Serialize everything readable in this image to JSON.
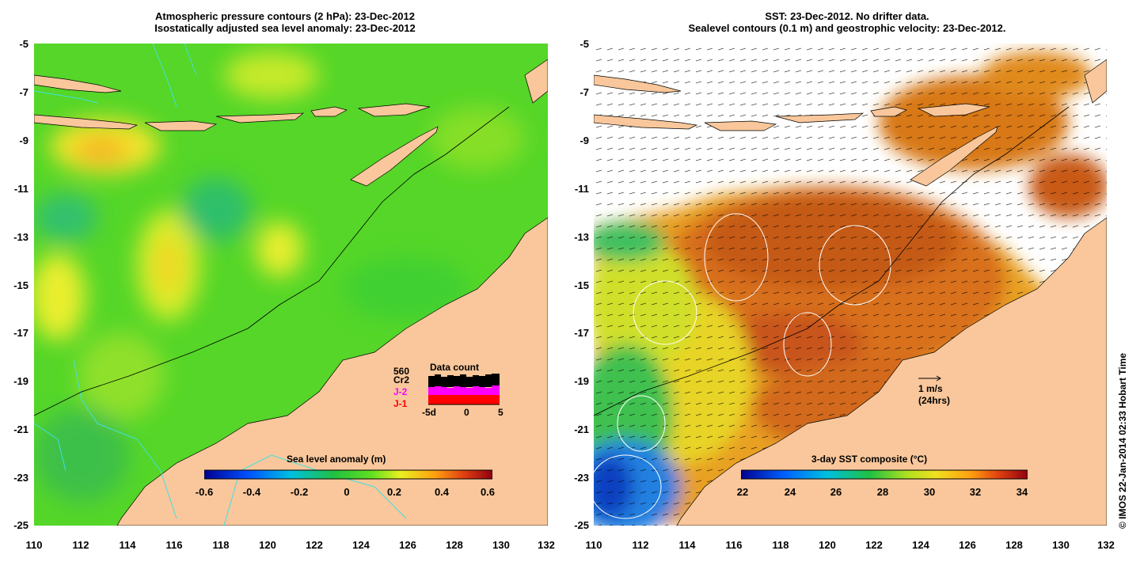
{
  "left_panel": {
    "title_line1": "Atmospheric pressure contours (2 hPa): 23-Dec-2012",
    "title_line2": "Isostatically adjusted sea level anomaly: 23-Dec-2012",
    "colorbar_title": "Sea level anomaly (m)",
    "colorbar_ticks": [
      "-0.6",
      "-0.4",
      "-0.2",
      "0",
      "0.2",
      "0.4",
      "0.6"
    ],
    "data_count": {
      "title": "Data count",
      "max_label": "560",
      "series": [
        {
          "name": "Cr2",
          "color": "#000000"
        },
        {
          "name": "J-2",
          "color": "#ff00ff"
        },
        {
          "name": "J-1",
          "color": "#ff0000"
        }
      ],
      "x_ticks": [
        "-5d",
        "0",
        "5"
      ]
    }
  },
  "right_panel": {
    "title_line1": "SST: 23-Dec-2012. No drifter data.",
    "title_line2": "Sealevel contours (0.1 m) and geostrophic velocity: 23-Dec-2012.",
    "colorbar_title": "3-day SST composite (°C)",
    "colorbar_ticks": [
      "22",
      "24",
      "26",
      "28",
      "30",
      "32",
      "34"
    ],
    "velocity_scale": {
      "label": "1 m/s",
      "sublabel": "(24hrs)"
    }
  },
  "axes": {
    "lat_ticks": [
      "-5",
      "-7",
      "-9",
      "-11",
      "-13",
      "-15",
      "-17",
      "-19",
      "-21",
      "-23",
      "-25"
    ],
    "lon_ticks": [
      "110",
      "112",
      "114",
      "116",
      "118",
      "120",
      "122",
      "124",
      "126",
      "128",
      "130",
      "132"
    ]
  },
  "credit": "© IMOS 22-Jan-2014 02:33 Hobart Time",
  "colors": {
    "land": "#f9c79b",
    "ocean_green": "#55d628",
    "sst_orange": "#e07a10",
    "sst_red": "#c0450a",
    "cloud_white": "#ffffff",
    "contour_cyan": "#40e0e0"
  }
}
